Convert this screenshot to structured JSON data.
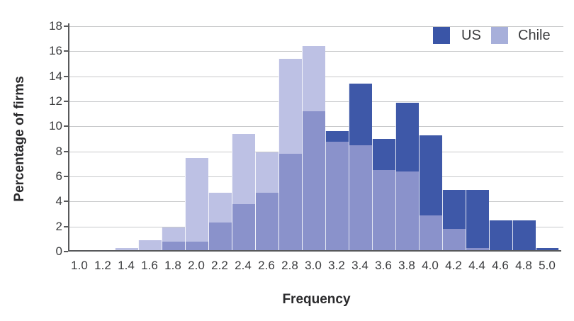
{
  "figure": {
    "y_axis_title": "Percentage of firms",
    "x_axis_title": "Frequency",
    "legend": [
      {
        "label": "US",
        "swatch_color": "#3a55a7"
      },
      {
        "label": "Chile",
        "swatch_color": "#a7afda"
      }
    ]
  },
  "chart_data": {
    "type": "bar",
    "subtype": "overlaid-histogram",
    "title": "",
    "xlabel": "Frequency",
    "ylabel": "Percentage of firms",
    "bin_width": 0.2,
    "x": [
      1.0,
      1.2,
      1.4,
      1.6,
      1.8,
      2.0,
      2.2,
      2.4,
      2.6,
      2.8,
      3.0,
      3.2,
      3.4,
      3.6,
      3.8,
      4.0,
      4.2,
      4.4,
      4.6,
      4.8,
      5.0
    ],
    "x_tick_labels": [
      "1.0",
      "1.2",
      "1.4",
      "1.6",
      "1.8",
      "2.0",
      "2.2",
      "2.4",
      "2.6",
      "2.8",
      "3.0",
      "3.2",
      "3.4",
      "3.6",
      "3.8",
      "4.0",
      "4.2",
      "4.4",
      "4.6",
      "4.8",
      "5.0"
    ],
    "series": [
      {
        "name": "US",
        "color": "#3e58a8",
        "values": [
          0,
          0,
          0,
          0,
          0.8,
          0.8,
          2.3,
          3.8,
          4.7,
          7.8,
          11.2,
          9.6,
          13.4,
          9.0,
          11.9,
          9.3,
          4.9,
          4.9,
          2.5,
          2.5,
          0.3
        ]
      },
      {
        "name": "Chile",
        "color": "#bdc1e4",
        "values": [
          0,
          0,
          0.3,
          0.9,
          1.9,
          7.5,
          4.7,
          9.4,
          7.9,
          15.4,
          16.4,
          8.8,
          8.5,
          6.5,
          6.4,
          2.9,
          1.8,
          0.3,
          0,
          0,
          0
        ]
      }
    ],
    "overlap_color": "#8a92cb",
    "ylim": [
      0,
      18
    ],
    "y_ticks": [
      0,
      2,
      4,
      6,
      8,
      10,
      12,
      14,
      16,
      18
    ],
    "grid": "horizontal",
    "legend_position": "top-right"
  }
}
